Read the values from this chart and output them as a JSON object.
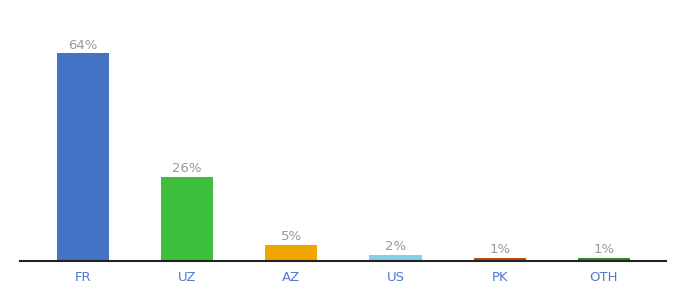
{
  "categories": [
    "FR",
    "UZ",
    "AZ",
    "US",
    "PK",
    "OTH"
  ],
  "values": [
    64,
    26,
    5,
    2,
    1,
    1
  ],
  "labels": [
    "64%",
    "26%",
    "5%",
    "2%",
    "1%",
    "1%"
  ],
  "bar_colors": [
    "#4472c4",
    "#3dbf3d",
    "#f0a500",
    "#87ceeb",
    "#c04a10",
    "#2d8a2d"
  ],
  "background_color": "#ffffff",
  "ylim_max": 74,
  "label_fontsize": 9.5,
  "tick_fontsize": 9.5,
  "label_color": "#999999",
  "tick_color": "#5577cc",
  "bar_width": 0.5
}
